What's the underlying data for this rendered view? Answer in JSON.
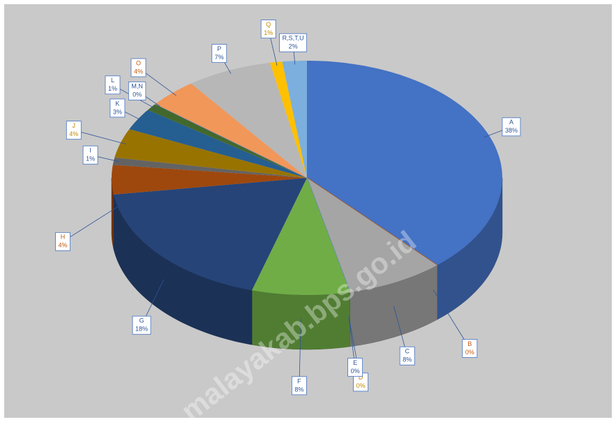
{
  "chart_data": {
    "type": "pie3d",
    "categories": [
      "A",
      "B",
      "C",
      "D",
      "E",
      "F",
      "G",
      "H",
      "I",
      "J",
      "K",
      "L",
      "M,N",
      "O",
      "P",
      "Q",
      "R,S,T,U"
    ],
    "values": [
      38,
      0,
      8,
      0,
      0,
      8,
      18,
      4,
      1,
      4,
      3,
      1,
      0,
      4,
      7,
      1,
      2
    ],
    "value_labels": [
      "38%",
      "0%",
      "8%",
      "0%",
      "0%",
      "8%",
      "18%",
      "4%",
      "1%",
      "4%",
      "3%",
      "1%",
      "0%",
      "4%",
      "7%",
      "1%",
      "2%"
    ],
    "colors": [
      "#4472c4",
      "#c55a11",
      "#a5a5a5",
      "#ffc000",
      "#5b9bd5",
      "#70ad47",
      "#264478",
      "#9e480e",
      "#636363",
      "#997300",
      "#255e91",
      "#43682b",
      "#698ed0",
      "#f1975a",
      "#b7b7b7",
      "#ffc000",
      "#7cafdd"
    ],
    "label_colors": [
      "#2f5597",
      "#c55a11",
      "#2f5597",
      "#c58a00",
      "#2f5597",
      "#2f5597",
      "#2f5597",
      "#c55a11",
      "#2f5597",
      "#c58a00",
      "#2f5597",
      "#2f5597",
      "#2f5597",
      "#c55a11",
      "#2f5597",
      "#c58a00",
      "#2f5597"
    ],
    "watermark": "malayakab.bps.go.id"
  }
}
